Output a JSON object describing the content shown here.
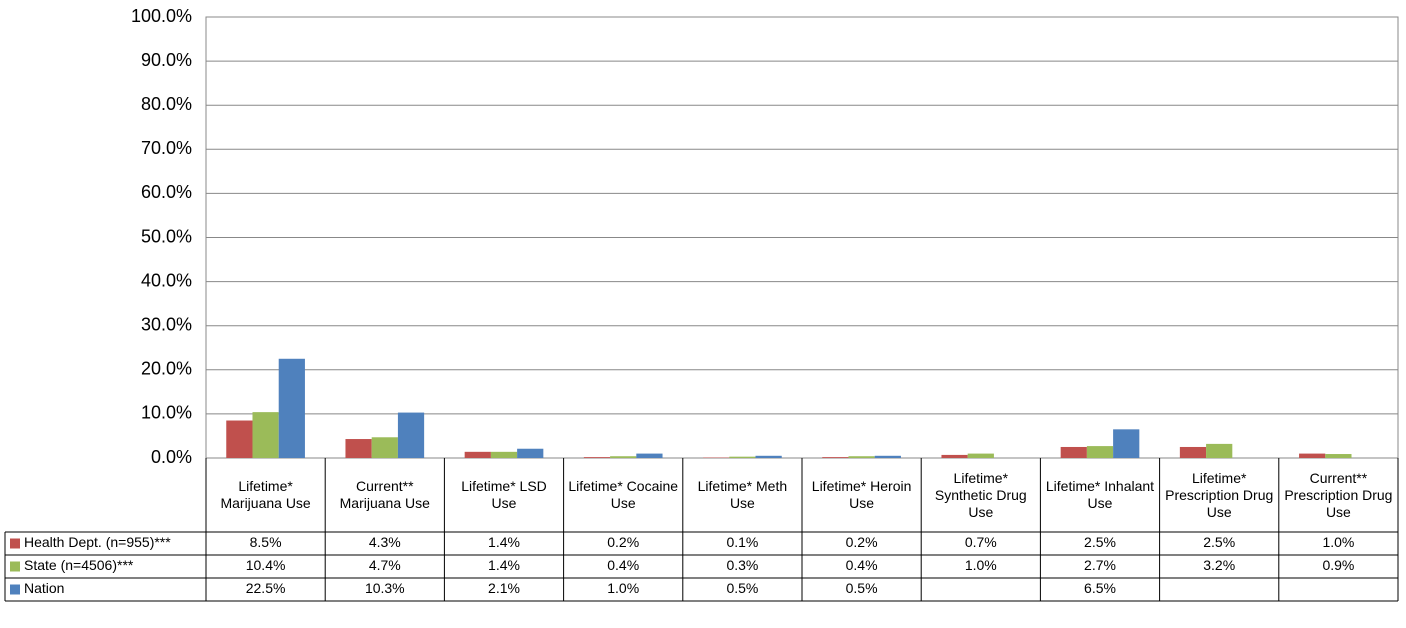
{
  "chart_data": {
    "type": "bar",
    "categories": [
      "Lifetime* Marijuana Use",
      "Current** Marijuana Use",
      "Lifetime* LSD Use",
      "Lifetime* Cocaine Use",
      "Lifetime* Meth Use",
      "Lifetime* Heroin Use",
      "Lifetime* Synthetic Drug Use",
      "Lifetime* Inhalant Use",
      "Lifetime* Prescription Drug Use",
      "Current** Prescription Drug Use"
    ],
    "series": [
      {
        "name": "Health Dept. (n=955)***",
        "color": "#c0504d",
        "values": [
          8.5,
          4.3,
          1.4,
          0.2,
          0.1,
          0.2,
          0.7,
          2.5,
          2.5,
          1.0
        ],
        "value_labels": [
          "8.5%",
          "4.3%",
          "1.4%",
          "0.2%",
          "0.1%",
          "0.2%",
          "0.7%",
          "2.5%",
          "2.5%",
          "1.0%"
        ]
      },
      {
        "name": "State (n=4506)***",
        "color": "#9bbb59",
        "values": [
          10.4,
          4.7,
          1.4,
          0.4,
          0.3,
          0.4,
          1.0,
          2.7,
          3.2,
          0.9
        ],
        "value_labels": [
          "10.4%",
          "4.7%",
          "1.4%",
          "0.4%",
          "0.3%",
          "0.4%",
          "1.0%",
          "2.7%",
          "3.2%",
          "0.9%"
        ]
      },
      {
        "name": "Nation",
        "color": "#4f81bd",
        "values": [
          22.5,
          10.3,
          2.1,
          1.0,
          0.5,
          0.5,
          null,
          6.5,
          null,
          null
        ],
        "value_labels": [
          "22.5%",
          "10.3%",
          "2.1%",
          "1.0%",
          "0.5%",
          "0.5%",
          null,
          "6.5%",
          null,
          null
        ]
      }
    ],
    "ylim": [
      0,
      100
    ],
    "yticks": [
      {
        "value": 0,
        "label": "0.0%"
      },
      {
        "value": 10,
        "label": "10.0%"
      },
      {
        "value": 20,
        "label": "20.0%"
      },
      {
        "value": 30,
        "label": "30.0%"
      },
      {
        "value": 40,
        "label": "40.0%"
      },
      {
        "value": 50,
        "label": "50.0%"
      },
      {
        "value": 60,
        "label": "60.0%"
      },
      {
        "value": 70,
        "label": "70.0%"
      },
      {
        "value": 80,
        "label": "80.0%"
      },
      {
        "value": 90,
        "label": "90.0%"
      },
      {
        "value": 100,
        "label": "100.0%"
      }
    ],
    "grid": true
  }
}
